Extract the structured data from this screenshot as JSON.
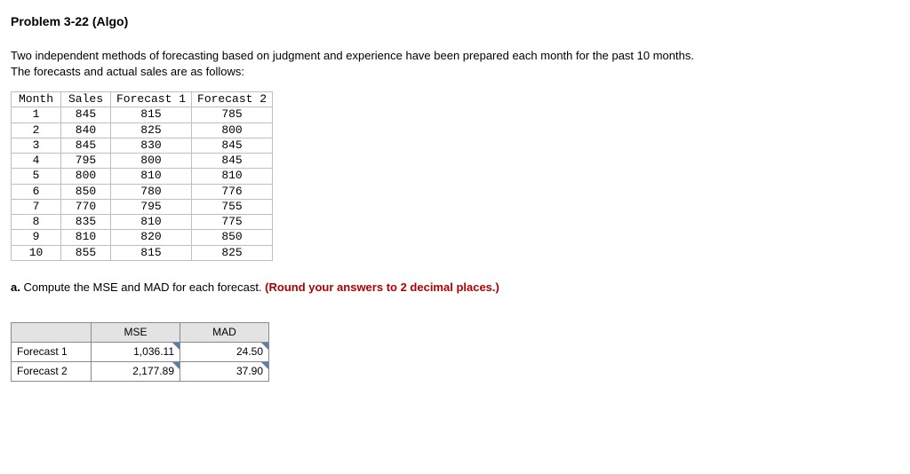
{
  "title": "Problem 3-22 (Algo)",
  "intro_line1": "Two independent methods of forecasting based on judgment and experience have been prepared each month for the past 10 months.",
  "intro_line2": "The forecasts and actual sales are as follows:",
  "data_table": {
    "columns": [
      "Month",
      "Sales",
      "Forecast 1",
      "Forecast 2"
    ],
    "rows": [
      [
        "1",
        "845",
        "815",
        "785"
      ],
      [
        "2",
        "840",
        "825",
        "800"
      ],
      [
        "3",
        "845",
        "830",
        "845"
      ],
      [
        "4",
        "795",
        "800",
        "845"
      ],
      [
        "5",
        "800",
        "810",
        "810"
      ],
      [
        "6",
        "850",
        "780",
        "776"
      ],
      [
        "7",
        "770",
        "795",
        "755"
      ],
      [
        "8",
        "835",
        "810",
        "775"
      ],
      [
        "9",
        "810",
        "820",
        "850"
      ],
      [
        "10",
        "855",
        "815",
        "825"
      ]
    ]
  },
  "question": {
    "prefix": "a.",
    "text": "Compute the MSE and MAD for each forecast.",
    "round_note": "(Round your answers to 2 decimal places.)"
  },
  "answer_table": {
    "columns": [
      "MSE",
      "MAD"
    ],
    "rows": [
      {
        "label": "Forecast 1",
        "mse": "1,036.11",
        "mad": "24.50"
      },
      {
        "label": "Forecast 2",
        "mse": "2,177.89",
        "mad": "37.90"
      }
    ]
  },
  "colors": {
    "text": "#000000",
    "border_data": "#bfbfbf",
    "border_answer": "#8a8a8a",
    "header_bg": "#e3e3e3",
    "round_note": "#b00000",
    "flag": "#5b7ea8",
    "background": "#ffffff"
  }
}
